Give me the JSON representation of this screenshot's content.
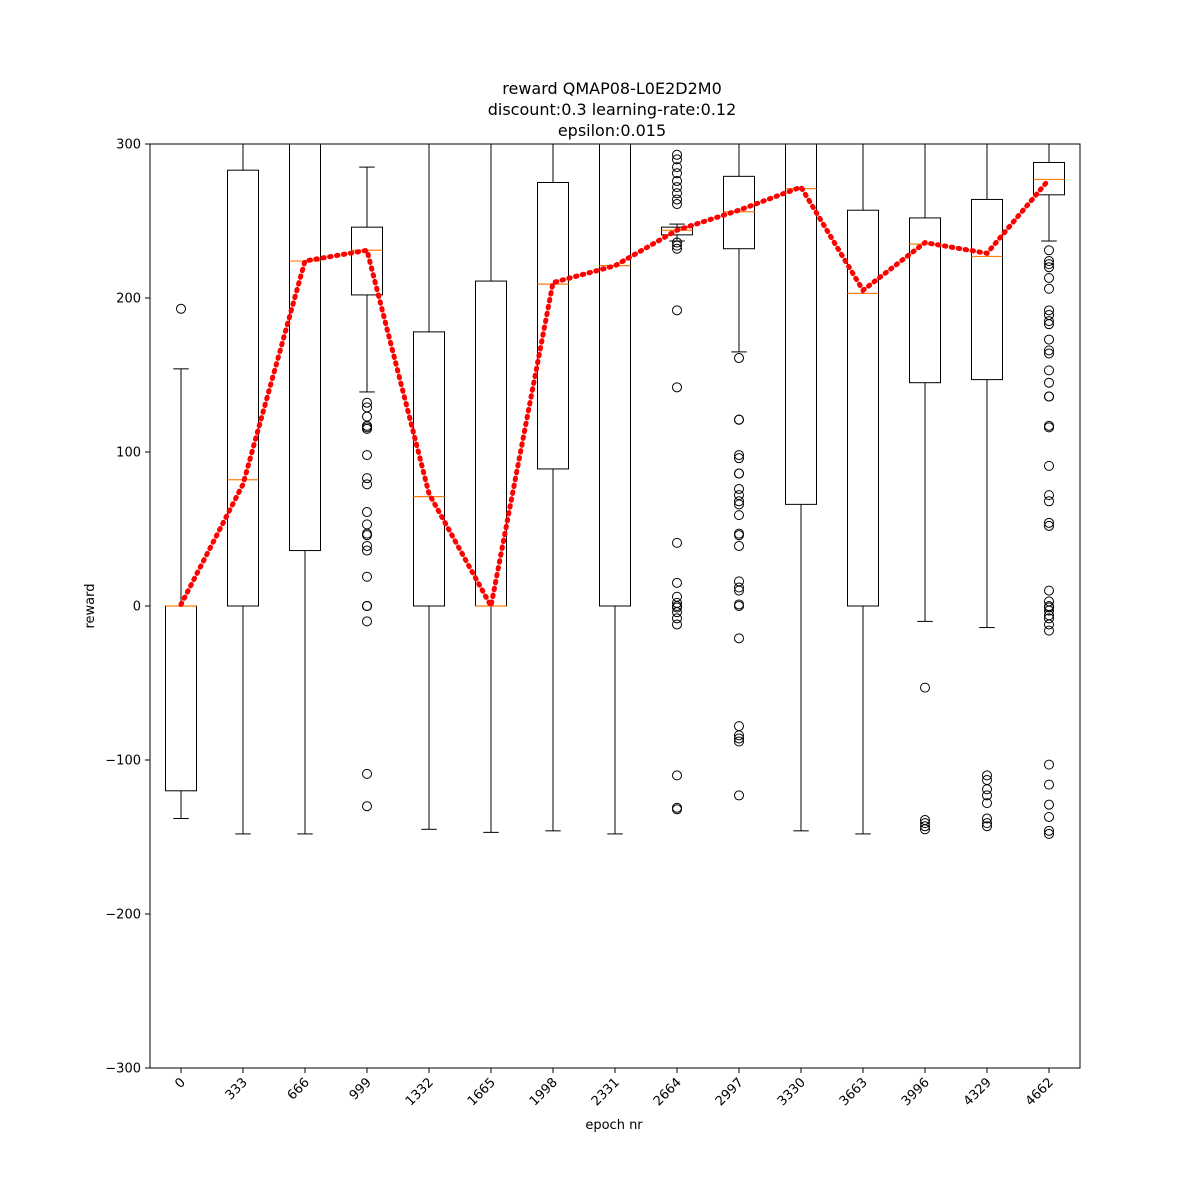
{
  "chart_data": {
    "type": "box",
    "title": [
      "reward QMAP08-L0E2D2M0",
      "discount:0.3 learning-rate:0.12",
      "epsilon:0.015"
    ],
    "xlabel": "epoch nr",
    "ylabel": "reward",
    "ylim": [
      -300,
      300
    ],
    "yticks": [
      300,
      200,
      100,
      0,
      -100,
      -200,
      -300
    ],
    "ytick_labels": [
      "300",
      "200",
      "100",
      "0",
      "−100",
      "−200",
      "−300"
    ],
    "categories": [
      "0",
      "333",
      "666",
      "999",
      "1332",
      "1665",
      "1998",
      "2331",
      "2664",
      "2997",
      "3330",
      "3663",
      "3996",
      "4329",
      "4662"
    ],
    "grid": false,
    "colors": {
      "box": "#000000",
      "median": "#ff7f0e",
      "mean_line": "#ff0000",
      "background": "#ffffff"
    },
    "boxes": [
      {
        "q1": -120,
        "median": 0,
        "q3": 0,
        "whisker_low": -138,
        "whisker_high": 154,
        "outliers": [
          193
        ]
      },
      {
        "q1": 0,
        "median": 82,
        "q3": 283,
        "whisker_low": -148,
        "whisker_high": 300,
        "outliers": []
      },
      {
        "q1": 36,
        "median": 224,
        "q3": 300,
        "whisker_low": -148,
        "whisker_high": 300,
        "outliers": []
      },
      {
        "q1": 202,
        "median": 231,
        "q3": 246,
        "whisker_low": 139,
        "whisker_high": 285,
        "outliers": [
          132,
          129,
          123,
          117,
          115,
          116,
          98,
          83,
          79,
          61,
          53,
          46,
          47,
          39,
          36,
          19,
          0,
          0,
          0,
          -10,
          -109,
          -130
        ]
      },
      {
        "q1": 0,
        "median": 71,
        "q3": 178,
        "whisker_low": -145,
        "whisker_high": 300,
        "outliers": []
      },
      {
        "q1": 0,
        "median": 0,
        "q3": 211,
        "whisker_low": -147,
        "whisker_high": 300,
        "outliers": []
      },
      {
        "q1": 89,
        "median": 209,
        "q3": 275,
        "whisker_low": -146,
        "whisker_high": 300,
        "outliers": []
      },
      {
        "q1": 0,
        "median": 221,
        "q3": 300,
        "whisker_low": -148,
        "whisker_high": 300,
        "outliers": []
      },
      {
        "q1": 241,
        "median": 244,
        "q3": 246,
        "whisker_low": 237,
        "whisker_high": 248,
        "outliers": [
          293,
          290,
          285,
          281,
          276,
          272,
          268,
          264,
          261,
          236,
          234,
          232,
          192,
          142,
          41,
          15,
          6,
          2,
          0,
          -1,
          -4,
          -8,
          -12,
          -110,
          -131,
          -132
        ]
      },
      {
        "q1": 232,
        "median": 256,
        "q3": 279,
        "whisker_low": 165,
        "whisker_high": 300,
        "outliers": [
          161,
          121,
          121,
          98,
          96,
          86,
          86,
          76,
          72,
          68,
          66,
          59,
          47,
          46,
          39,
          16,
          12,
          10,
          1,
          0,
          -21,
          -78,
          -84,
          -86,
          -88,
          -123
        ]
      },
      {
        "q1": 66,
        "median": 271,
        "q3": 300,
        "whisker_low": -146,
        "whisker_high": 300,
        "outliers": []
      },
      {
        "q1": 0,
        "median": 203,
        "q3": 257,
        "whisker_low": -148,
        "whisker_high": 300,
        "outliers": []
      },
      {
        "q1": 145,
        "median": 235,
        "q3": 252,
        "whisker_low": -10,
        "whisker_high": 300,
        "outliers": [
          -53,
          -139,
          -141,
          -143,
          -145
        ]
      },
      {
        "q1": 147,
        "median": 227,
        "q3": 264,
        "whisker_low": -14,
        "whisker_high": 300,
        "outliers": [
          -110,
          -113,
          -119,
          -123,
          -128,
          -138,
          -141,
          -143
        ]
      },
      {
        "q1": 267,
        "median": 277,
        "q3": 288,
        "whisker_low": 237,
        "whisker_high": 300,
        "outliers": [
          231,
          224,
          222,
          220,
          213,
          206,
          192,
          189,
          185,
          183,
          173,
          166,
          164,
          153,
          145,
          136,
          136,
          117,
          116,
          91,
          72,
          68,
          54,
          52,
          10,
          3,
          0,
          -1,
          -3,
          -6,
          -8,
          -12,
          -16,
          -103,
          -116,
          -129,
          -137,
          -146,
          -148
        ]
      }
    ],
    "mean_line": {
      "style": "dotted",
      "values": [
        1,
        79,
        224,
        231,
        73,
        0,
        210,
        221,
        244,
        257,
        272,
        205,
        236,
        229,
        277
      ]
    }
  }
}
